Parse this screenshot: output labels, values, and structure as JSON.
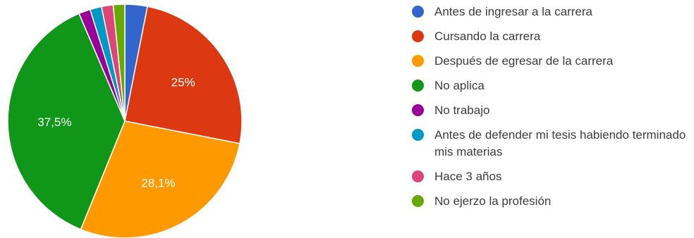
{
  "chart_data": {
    "type": "pie",
    "categories": [
      "Antes de ingresar a la carrera",
      "Cursando la carrera",
      "Después de egresar de la carrera",
      "No aplica",
      "No trabajo",
      "Antes de defender mi tesis habiendo terminado mis materias",
      "Hace 3 años",
      "No ejerzo la profesión"
    ],
    "values": [
      3.1,
      25,
      28.1,
      37.5,
      1.6,
      1.6,
      1.6,
      1.6
    ],
    "data_labels": [
      "",
      "25%",
      "28,1%",
      "37,5%",
      "",
      "",
      "",
      ""
    ],
    "colors": [
      "#3366cc",
      "#dc3912",
      "#ff9900",
      "#109618",
      "#990099",
      "#0099c6",
      "#dd4477",
      "#66aa00"
    ],
    "start_angle_deg": 90,
    "direction": "clockwise",
    "legend_position": "right"
  }
}
